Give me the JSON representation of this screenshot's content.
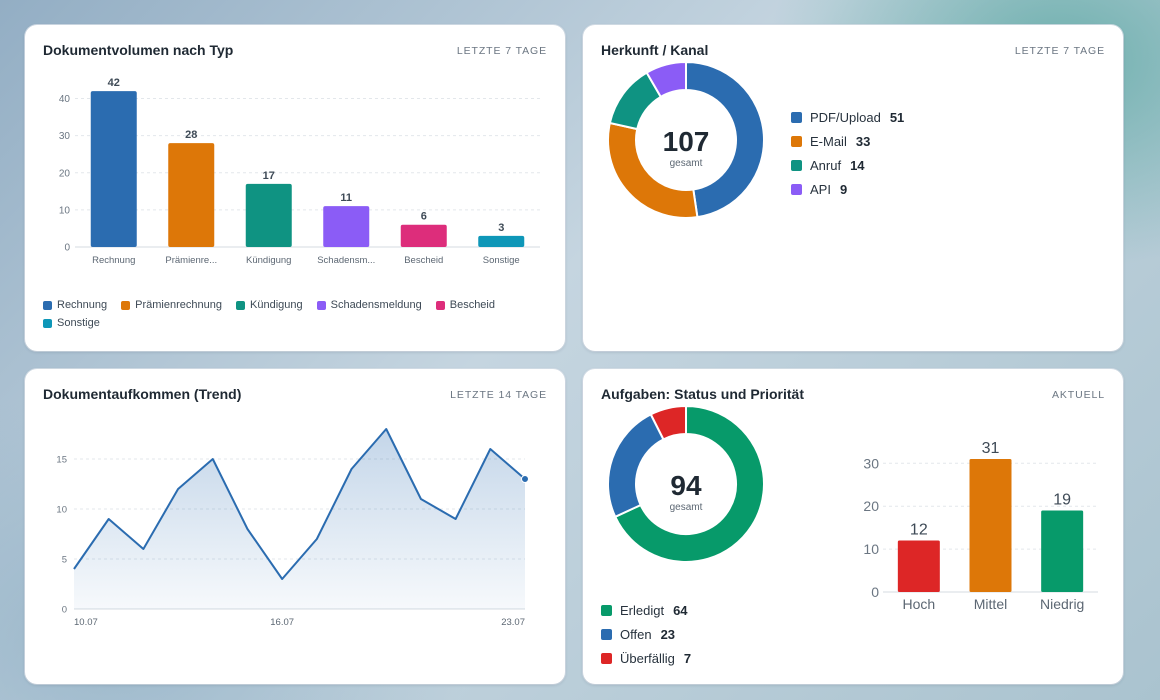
{
  "card1": {
    "title": "Dokumentvolumen nach Typ",
    "meta": "LETZTE 7 TAGE"
  },
  "card2": {
    "title": "Herkunft / Kanal",
    "meta": "LETZTE 7 TAGE",
    "center_value": "107",
    "center_label": "gesamt"
  },
  "card3": {
    "title": "Dokumentaufkommen (Trend)",
    "meta": "LETZTE 14 TAGE"
  },
  "card4": {
    "title": "Aufgaben: Status und Priorität",
    "meta": "AKTUELL",
    "center_value": "94",
    "center_label": "gesamt"
  },
  "chart_data": [
    {
      "type": "bar",
      "title": "Dokumentvolumen nach Typ",
      "categories": [
        "Rechnung",
        "Prämienrechnung",
        "Kündigung",
        "Schadensmeldung",
        "Bescheid",
        "Sonstige"
      ],
      "tick_labels": [
        "Rechnung",
        "Prämienre...",
        "Kündigung",
        "Schadensm...",
        "Bescheid",
        "Sonstige"
      ],
      "values": [
        42,
        28,
        17,
        11,
        6,
        3
      ],
      "colors": [
        "#2b6cb0",
        "#dd7708",
        "#0f9382",
        "#8b5cf6",
        "#dd2d7b",
        "#0e97b8"
      ],
      "ylim": [
        0,
        45
      ],
      "yticks": [
        0,
        10,
        20,
        30,
        40
      ],
      "grid": true,
      "legend": "bottom",
      "data_labels": true
    },
    {
      "type": "pie",
      "title": "Herkunft / Kanal",
      "donut": true,
      "labels": [
        "PDF/Upload",
        "E-Mail",
        "Anruf",
        "API"
      ],
      "values": [
        51,
        33,
        14,
        9
      ],
      "colors": [
        "#2b6cb0",
        "#dd7708",
        "#0f9382",
        "#8b5cf6"
      ],
      "legend": "right"
    },
    {
      "type": "area",
      "title": "Dokumentaufkommen (Trend)",
      "x": [
        "10.07",
        "11.07",
        "12.07",
        "13.07",
        "14.07",
        "15.07",
        "16.07",
        "17.07",
        "18.07",
        "19.07",
        "20.07",
        "21.07",
        "22.07",
        "23.07"
      ],
      "x_ticks_shown": [
        "10.07",
        "16.07",
        "23.07"
      ],
      "values": [
        4,
        9,
        6,
        12,
        15,
        8,
        3,
        7,
        14,
        18,
        11,
        9,
        16,
        13
      ],
      "color": "#2b6cb0",
      "ylim": [
        0,
        18
      ],
      "yticks": [
        0,
        5,
        10,
        15
      ],
      "grid": true
    },
    {
      "type": "pie",
      "title": "Aufgaben: Status",
      "donut": true,
      "labels": [
        "Erledigt",
        "Offen",
        "Überfällig"
      ],
      "values": [
        64,
        23,
        7
      ],
      "colors": [
        "#079a6a",
        "#2b6cb0",
        "#dd2626"
      ],
      "legend": "bottom"
    },
    {
      "type": "bar",
      "title": "Aufgaben: Priorität",
      "categories": [
        "Hoch",
        "Mittel",
        "Niedrig"
      ],
      "values": [
        12,
        31,
        19
      ],
      "colors": [
        "#dd2626",
        "#dd7708",
        "#079a6a"
      ],
      "ylim": [
        0,
        31
      ],
      "yticks": [
        0,
        10,
        20,
        30
      ],
      "grid": true,
      "data_labels": true
    }
  ]
}
